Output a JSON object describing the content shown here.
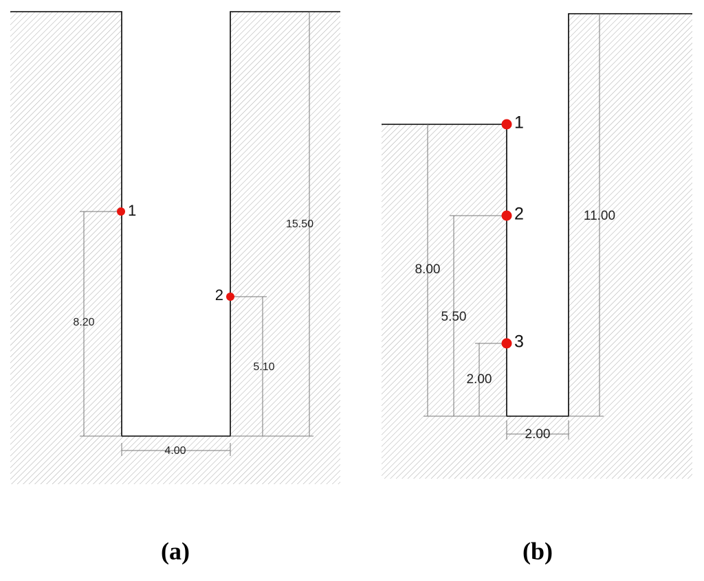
{
  "panels": [
    {
      "label": "(a)",
      "points": [
        "1",
        "2"
      ],
      "dimensions": [
        "8.20",
        "15.50",
        "5.10",
        "4.00"
      ]
    },
    {
      "label": "(b)",
      "points": [
        "1",
        "2",
        "3"
      ],
      "dimensions": [
        "8.00",
        "5.50",
        "2.00",
        "11.00",
        "2.00"
      ]
    }
  ]
}
